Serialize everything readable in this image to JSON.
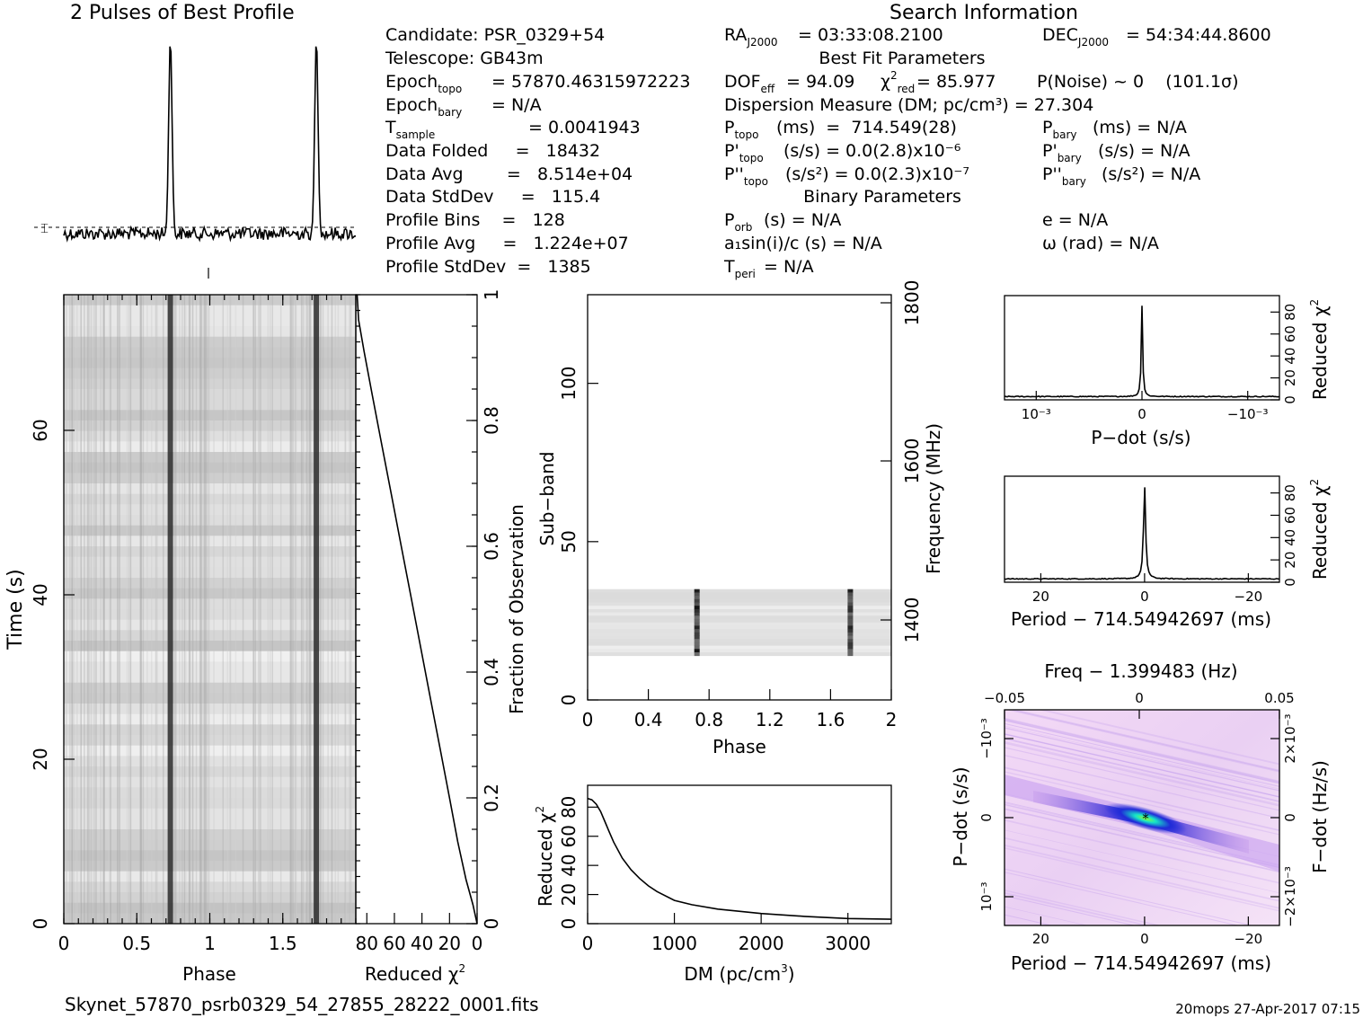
{
  "profile_title": "2 Pulses of Best Profile",
  "search_title": "Search Information",
  "info": {
    "candidate": "Candidate:  PSR_0329+54",
    "telescope": "Telescope:  GB43m",
    "epoch_topo": "= 57870.46315972223",
    "epoch_bary": "= N/A",
    "tsample": "=   0.0041943",
    "data_folded": "Data Folded     =   18432",
    "data_avg": "Data Avg        =   8.514e+04",
    "data_stddev": "Data StdDev     =   115.4",
    "profile_bins": "Profile Bins    =   128",
    "profile_avg": "Profile Avg     =   1.224e+07",
    "profile_stddev": "Profile StdDev  =   1385"
  },
  "params": {
    "ra": "= 03:33:08.2100",
    "dec": "= 54:34:44.8600",
    "best_fit_title": "Best Fit Parameters",
    "dof": "= 94.09",
    "chi2red": "= 85.977",
    "pnoise": "P(Noise) ~ 0    (101.1σ)",
    "dm": "Dispersion Measure (DM; pc/cm³) = 27.304",
    "ptopo": "(ms)  =  714.549(28)",
    "pbary": "(ms) = N/A",
    "pdtopo": "(s/s) = 0.0(2.8)x10⁻⁶",
    "pdbary": "(s/s) = N/A",
    "pddtopo": "(s/s²) = 0.0(2.3)x10⁻⁷",
    "pddbary": "(s/s²) = N/A",
    "binary_title": "Binary Parameters",
    "porb": "(s) = N/A",
    "e": "e = N/A",
    "a1": "a₁sin(i)/c (s) = N/A",
    "omega": "ω (rad) = N/A",
    "tperi": "= N/A"
  },
  "footer": {
    "filename": "Skynet_57870_psrb0329_54_27855_28222_0001.fits",
    "stamp": "20mops 27-Apr-2017 07:15"
  },
  "chart_data": [
    {
      "type": "line",
      "id": "profile",
      "title": "2 Pulses of Best Profile",
      "x_range": [
        0,
        2
      ],
      "pulse_centers": [
        0.73,
        1.73
      ],
      "peak_relative_height": 1.0
    },
    {
      "type": "heatmap",
      "id": "time_phase",
      "xlabel": "Phase",
      "ylabel": "Time (s)",
      "xlim": [
        0,
        2
      ],
      "ylim": [
        0,
        76.5
      ],
      "x_ticks": [
        "0",
        "0.5",
        "1",
        "1.5"
      ],
      "y_ticks": [
        "0",
        "20",
        "40",
        "60"
      ],
      "pulse_phases": [
        0.73,
        1.73
      ]
    },
    {
      "type": "line",
      "id": "chi2_vs_fraction",
      "xlabel": "Reduced χ²",
      "ylabel": "Fraction of Observation",
      "xlim": [
        88,
        0
      ],
      "ylim": [
        0,
        1
      ],
      "x_ticks": [
        "80",
        "60",
        "40",
        "20",
        "0"
      ],
      "y_ticks": [
        "0",
        "0.2",
        "0.4",
        "0.6",
        "0.8",
        "1"
      ],
      "x": [
        0,
        3,
        8,
        14,
        20,
        27,
        34,
        41,
        48,
        55,
        62,
        69,
        76,
        82,
        86,
        87
      ],
      "y": [
        0,
        0.03,
        0.07,
        0.13,
        0.2,
        0.28,
        0.36,
        0.44,
        0.52,
        0.6,
        0.68,
        0.76,
        0.84,
        0.91,
        0.96,
        1.0
      ]
    },
    {
      "type": "heatmap",
      "id": "subband_phase",
      "xlabel": "Phase",
      "ylabel": "Sub-band",
      "y2label": "Frequency (MHz)",
      "xlim": [
        0,
        2
      ],
      "ylim": [
        0,
        128
      ],
      "x_ticks": [
        "0",
        "0.4",
        "0.8",
        "1.2",
        "1.6",
        "2"
      ],
      "y_ticks": [
        "0",
        "50",
        "100"
      ],
      "y2_ticks": [
        "1400",
        "1600",
        "1800"
      ],
      "filled_subbands": [
        14,
        35
      ],
      "pulse_phases": [
        0.72,
        1.73
      ]
    },
    {
      "type": "line",
      "id": "dm_curve",
      "xlabel": "DM (pc/cm³)",
      "ylabel": "Reduced χ²",
      "xlim": [
        0,
        3500
      ],
      "ylim": [
        0,
        95
      ],
      "x_ticks": [
        "0",
        "1000",
        "2000",
        "3000"
      ],
      "y_ticks": [
        "0",
        "20",
        "40",
        "60",
        "80"
      ],
      "x": [
        0,
        50,
        100,
        150,
        200,
        250,
        300,
        400,
        500,
        600,
        700,
        800,
        1000,
        1200,
        1500,
        2000,
        2500,
        3000,
        3500
      ],
      "y": [
        86,
        85,
        82,
        77,
        70,
        63,
        56,
        45,
        37,
        31,
        26,
        22,
        16,
        13,
        10,
        7,
        5,
        3.5,
        3
      ]
    },
    {
      "type": "line",
      "id": "pdot_curve",
      "xlabel": "P−dot (s/s)",
      "ylabel": "Reduced χ²",
      "xlim": [
        0.0013,
        -0.0013
      ],
      "ylim": [
        0,
        95
      ],
      "x_ticks": [
        "10⁻³",
        "0",
        "−10⁻³"
      ],
      "y_ticks": [
        "0",
        "20",
        "40",
        "60",
        "80"
      ],
      "peak_x": 0,
      "peak_y": 86,
      "baseline": 3
    },
    {
      "type": "line",
      "id": "period_curve",
      "xlabel": "Period − 714.54942697 (ms)",
      "ylabel": "Reduced χ²",
      "xlim": [
        27,
        -26
      ],
      "ylim": [
        0,
        95
      ],
      "x_ticks": [
        "20",
        "0",
        "−20"
      ],
      "y_ticks": [
        "0",
        "20",
        "40",
        "60",
        "80"
      ],
      "peak_x": 0,
      "peak_y": 86,
      "baseline": 3
    },
    {
      "type": "heatmap",
      "id": "period_pdot",
      "xlabel": "Period − 714.54942697 (ms)",
      "ylabel": "P−dot (s/s)",
      "x2label": "Freq − 1.399483 (Hz)",
      "y2label": "F−dot (Hz/s)",
      "xlim": [
        27,
        -26
      ],
      "ylim": [
        0.0013,
        -0.0013
      ],
      "x_ticks": [
        "20",
        "0",
        "−20"
      ],
      "x2_ticks": [
        "−0.05",
        "0",
        "0.05"
      ],
      "y_ticks": [
        "−10⁻³",
        "0",
        "10⁻³"
      ],
      "y2_ticks": [
        "2×10⁻³",
        "0",
        "−2×10⁻³"
      ],
      "colors": {
        "low": "#f6e4f8",
        "mid": "#1f2bd8",
        "high": "#16e3c8",
        "peak": "#8dff3a"
      }
    }
  ]
}
